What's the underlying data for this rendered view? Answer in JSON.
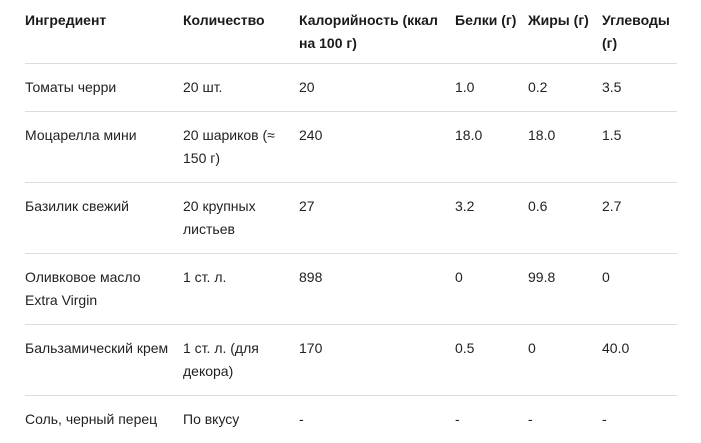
{
  "headers": [
    "Ингредиент",
    "Количество",
    "Калорийность (ккал на 100 г)",
    "Белки (г)",
    "Жиры (г)",
    "Углеводы (г)"
  ],
  "rows": [
    [
      "Томаты черри",
      "20 шт.",
      "20",
      "1.0",
      "0.2",
      "3.5"
    ],
    [
      "Моцарелла мини",
      "20 шариков (≈ 150 г)",
      "240",
      "18.0",
      "18.0",
      "1.5"
    ],
    [
      "Базилик свежий",
      "20 крупных листьев",
      "27",
      "3.2",
      "0.6",
      "2.7"
    ],
    [
      "Оливковое масло Extra Virgin",
      "1 ст. л.",
      "898",
      "0",
      "99.8",
      "0"
    ],
    [
      "Бальзамический крем",
      "1 ст. л. (для декора)",
      "170",
      "0.5",
      "0",
      "40.0"
    ],
    [
      "Соль, черный перец",
      "По вкусу",
      "-",
      "-",
      "-",
      "-"
    ]
  ]
}
